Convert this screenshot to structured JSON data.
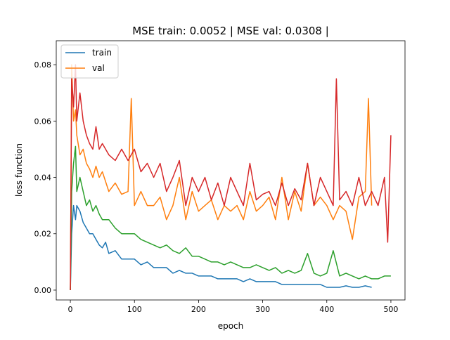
{
  "chart_data": {
    "type": "line",
    "title": "MSE train: 0.0052 | MSE val: 0.0308 |",
    "xlabel": "epoch",
    "ylabel": "loss function",
    "xlim": [
      -22,
      522
    ],
    "ylim": [
      -0.0035,
      0.0885
    ],
    "xticks": [
      0,
      100,
      200,
      300,
      400,
      500
    ],
    "xtick_labels": [
      "0",
      "100",
      "200",
      "300",
      "400",
      "500"
    ],
    "yticks": [
      0.0,
      0.02,
      0.04,
      0.06,
      0.08
    ],
    "ytick_labels": [
      "0.00",
      "0.02",
      "0.04",
      "0.06",
      "0.08"
    ],
    "grid": false,
    "legend": {
      "placement": "top-left",
      "entries": [
        "train",
        "val"
      ]
    },
    "series": [
      {
        "name": "train",
        "color": "#1f77b4",
        "x": [
          0,
          2,
          5,
          8,
          10,
          15,
          20,
          25,
          30,
          35,
          40,
          45,
          50,
          55,
          60,
          70,
          80,
          90,
          100,
          110,
          120,
          130,
          140,
          150,
          160,
          170,
          180,
          190,
          200,
          210,
          220,
          230,
          240,
          250,
          260,
          270,
          280,
          290,
          300,
          310,
          320,
          330,
          340,
          350,
          360,
          370,
          380,
          390,
          400,
          410,
          420,
          430,
          440,
          450,
          460,
          470
        ],
        "y": [
          0.0,
          0.02,
          0.03,
          0.025,
          0.03,
          0.028,
          0.024,
          0.022,
          0.02,
          0.02,
          0.018,
          0.016,
          0.015,
          0.017,
          0.013,
          0.014,
          0.011,
          0.011,
          0.011,
          0.009,
          0.01,
          0.008,
          0.008,
          0.008,
          0.006,
          0.007,
          0.006,
          0.006,
          0.005,
          0.005,
          0.005,
          0.004,
          0.004,
          0.004,
          0.004,
          0.003,
          0.004,
          0.003,
          0.003,
          0.003,
          0.003,
          0.002,
          0.002,
          0.002,
          0.002,
          0.002,
          0.002,
          0.002,
          0.001,
          0.001,
          0.001,
          0.0015,
          0.001,
          0.001,
          0.0015,
          0.001
        ]
      },
      {
        "name": "val",
        "color": "#ff7f0e",
        "x": [
          0,
          2,
          5,
          8,
          10,
          15,
          20,
          25,
          30,
          35,
          40,
          45,
          50,
          60,
          70,
          80,
          90,
          95,
          100,
          110,
          120,
          130,
          140,
          150,
          160,
          170,
          180,
          190,
          200,
          210,
          220,
          230,
          240,
          250,
          260,
          270,
          280,
          290,
          300,
          310,
          320,
          330,
          340,
          350,
          360,
          370,
          380,
          390,
          400,
          410,
          420,
          430,
          440,
          450,
          460,
          465,
          470
        ],
        "y": [
          0.0,
          0.08,
          0.06,
          0.064,
          0.055,
          0.048,
          0.05,
          0.045,
          0.043,
          0.04,
          0.044,
          0.04,
          0.042,
          0.035,
          0.038,
          0.034,
          0.035,
          0.068,
          0.03,
          0.035,
          0.03,
          0.03,
          0.033,
          0.025,
          0.03,
          0.04,
          0.025,
          0.035,
          0.028,
          0.03,
          0.032,
          0.025,
          0.03,
          0.028,
          0.03,
          0.025,
          0.035,
          0.028,
          0.03,
          0.033,
          0.025,
          0.04,
          0.025,
          0.035,
          0.028,
          0.045,
          0.03,
          0.033,
          0.03,
          0.025,
          0.03,
          0.028,
          0.018,
          0.033,
          0.035,
          0.068,
          0.03
        ]
      },
      {
        "name": "",
        "color": "#2ca02c",
        "x": [
          0,
          2,
          5,
          8,
          10,
          15,
          20,
          25,
          30,
          35,
          40,
          45,
          50,
          60,
          70,
          80,
          90,
          100,
          110,
          120,
          130,
          140,
          150,
          160,
          170,
          180,
          190,
          200,
          210,
          220,
          230,
          240,
          250,
          260,
          270,
          280,
          290,
          300,
          310,
          320,
          330,
          340,
          350,
          360,
          370,
          380,
          390,
          400,
          410,
          420,
          430,
          440,
          450,
          460,
          470,
          480,
          490,
          500
        ],
        "y": [
          0.0,
          0.035,
          0.045,
          0.051,
          0.035,
          0.04,
          0.035,
          0.03,
          0.032,
          0.028,
          0.03,
          0.027,
          0.025,
          0.025,
          0.022,
          0.02,
          0.02,
          0.02,
          0.018,
          0.017,
          0.016,
          0.015,
          0.016,
          0.014,
          0.013,
          0.015,
          0.012,
          0.012,
          0.011,
          0.01,
          0.01,
          0.009,
          0.01,
          0.009,
          0.008,
          0.008,
          0.009,
          0.008,
          0.007,
          0.008,
          0.006,
          0.007,
          0.006,
          0.007,
          0.013,
          0.006,
          0.005,
          0.006,
          0.014,
          0.005,
          0.006,
          0.005,
          0.004,
          0.005,
          0.004,
          0.004,
          0.005,
          0.005
        ]
      },
      {
        "name": "",
        "color": "#d62728",
        "x": [
          0,
          2,
          5,
          8,
          10,
          15,
          20,
          25,
          30,
          35,
          40,
          45,
          50,
          60,
          70,
          80,
          90,
          100,
          110,
          120,
          130,
          140,
          150,
          160,
          170,
          180,
          190,
          200,
          210,
          220,
          230,
          240,
          250,
          260,
          270,
          280,
          290,
          300,
          310,
          320,
          330,
          340,
          350,
          360,
          370,
          380,
          390,
          400,
          410,
          415,
          420,
          430,
          440,
          450,
          460,
          470,
          480,
          490,
          495,
          500
        ],
        "y": [
          0.0,
          0.075,
          0.065,
          0.08,
          0.06,
          0.07,
          0.06,
          0.055,
          0.052,
          0.05,
          0.058,
          0.05,
          0.052,
          0.048,
          0.046,
          0.05,
          0.046,
          0.05,
          0.042,
          0.045,
          0.04,
          0.045,
          0.035,
          0.04,
          0.046,
          0.03,
          0.04,
          0.035,
          0.04,
          0.032,
          0.038,
          0.03,
          0.04,
          0.035,
          0.03,
          0.045,
          0.032,
          0.034,
          0.035,
          0.03,
          0.038,
          0.03,
          0.036,
          0.032,
          0.045,
          0.03,
          0.04,
          0.035,
          0.03,
          0.075,
          0.032,
          0.035,
          0.03,
          0.04,
          0.03,
          0.035,
          0.03,
          0.04,
          0.017,
          0.055
        ]
      }
    ]
  }
}
